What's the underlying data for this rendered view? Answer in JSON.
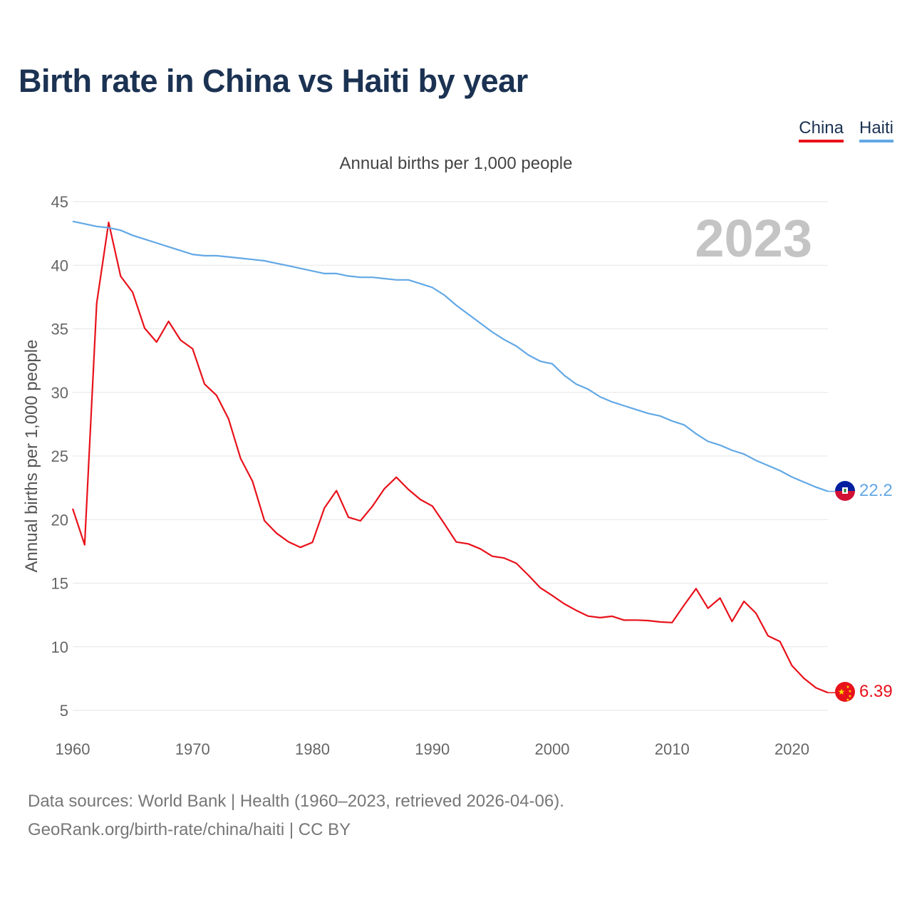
{
  "title": "Birth rate in China vs Haiti by year",
  "legend": [
    {
      "label": "China",
      "color": "#e8111a"
    },
    {
      "label": "Haiti",
      "color": "#62a8e5"
    }
  ],
  "footer": {
    "line1": "Data sources: World Bank | Health (1960–2023, retrieved 2026-04-06).",
    "line2": "GeoRank.org/birth-rate/china/haiti | CC BY"
  },
  "chart_data": {
    "type": "line",
    "title": "Birth rate in China vs Haiti by year",
    "subtitle": "Annual births per 1,000 people",
    "ylabel": "Annual births per 1,000 people",
    "xlabel": "",
    "year_label": "2023",
    "xlim": [
      1960,
      2023
    ],
    "ylim": [
      5,
      45
    ],
    "x_ticks": [
      1960,
      1970,
      1980,
      1990,
      2000,
      2010,
      2020
    ],
    "y_ticks": [
      5,
      10,
      15,
      20,
      25,
      30,
      35,
      40,
      45
    ],
    "grid": true,
    "x": [
      1960,
      1961,
      1962,
      1963,
      1964,
      1965,
      1966,
      1967,
      1968,
      1969,
      1970,
      1971,
      1972,
      1973,
      1974,
      1975,
      1976,
      1977,
      1978,
      1979,
      1980,
      1981,
      1982,
      1983,
      1984,
      1985,
      1986,
      1987,
      1988,
      1989,
      1990,
      1991,
      1992,
      1993,
      1994,
      1995,
      1996,
      1997,
      1998,
      1999,
      2000,
      2001,
      2002,
      2003,
      2004,
      2005,
      2006,
      2007,
      2008,
      2009,
      2010,
      2011,
      2012,
      2013,
      2014,
      2015,
      2016,
      2017,
      2018,
      2019,
      2020,
      2021,
      2022,
      2023
    ],
    "series": [
      {
        "name": "China",
        "color": "#e8111a",
        "end_label": "6.39",
        "flag": "china-flag",
        "values": [
          20.86,
          18.02,
          37.01,
          43.37,
          39.14,
          37.88,
          35.05,
          33.96,
          35.59,
          34.11,
          33.43,
          30.65,
          29.77,
          27.93,
          24.82,
          23.01,
          19.91,
          18.93,
          18.25,
          17.82,
          18.21,
          20.91,
          22.28,
          20.19,
          19.9,
          21.04,
          22.43,
          23.33,
          22.37,
          21.58,
          21.06,
          19.68,
          18.24,
          18.09,
          17.7,
          17.12,
          16.98,
          16.57,
          15.64,
          14.64,
          14.03,
          13.38,
          12.86,
          12.41,
          12.29,
          12.4,
          12.09,
          12.1,
          12.06,
          11.95,
          11.9,
          13.27,
          14.57,
          13.03,
          13.83,
          11.99,
          13.57,
          12.64,
          10.86,
          10.41,
          8.52,
          7.52,
          6.77,
          6.39
        ]
      },
      {
        "name": "Haiti",
        "color": "#62a8e5",
        "end_label": "22.2",
        "flag": "haiti-flag",
        "values": [
          43.45,
          43.25,
          43.05,
          42.95,
          42.75,
          42.35,
          42.05,
          41.75,
          41.45,
          41.15,
          40.85,
          40.75,
          40.75,
          40.65,
          40.55,
          40.45,
          40.35,
          40.15,
          39.95,
          39.75,
          39.55,
          39.35,
          39.35,
          39.15,
          39.05,
          39.05,
          38.95,
          38.85,
          38.85,
          38.55,
          38.25,
          37.65,
          36.85,
          36.15,
          35.45,
          34.75,
          34.15,
          33.65,
          32.95,
          32.45,
          32.25,
          31.35,
          30.65,
          30.25,
          29.65,
          29.25,
          28.95,
          28.65,
          28.35,
          28.15,
          27.75,
          27.45,
          26.75,
          26.15,
          25.85,
          25.45,
          25.15,
          24.65,
          24.25,
          23.85,
          23.35,
          22.95,
          22.55,
          22.22
        ]
      }
    ]
  }
}
